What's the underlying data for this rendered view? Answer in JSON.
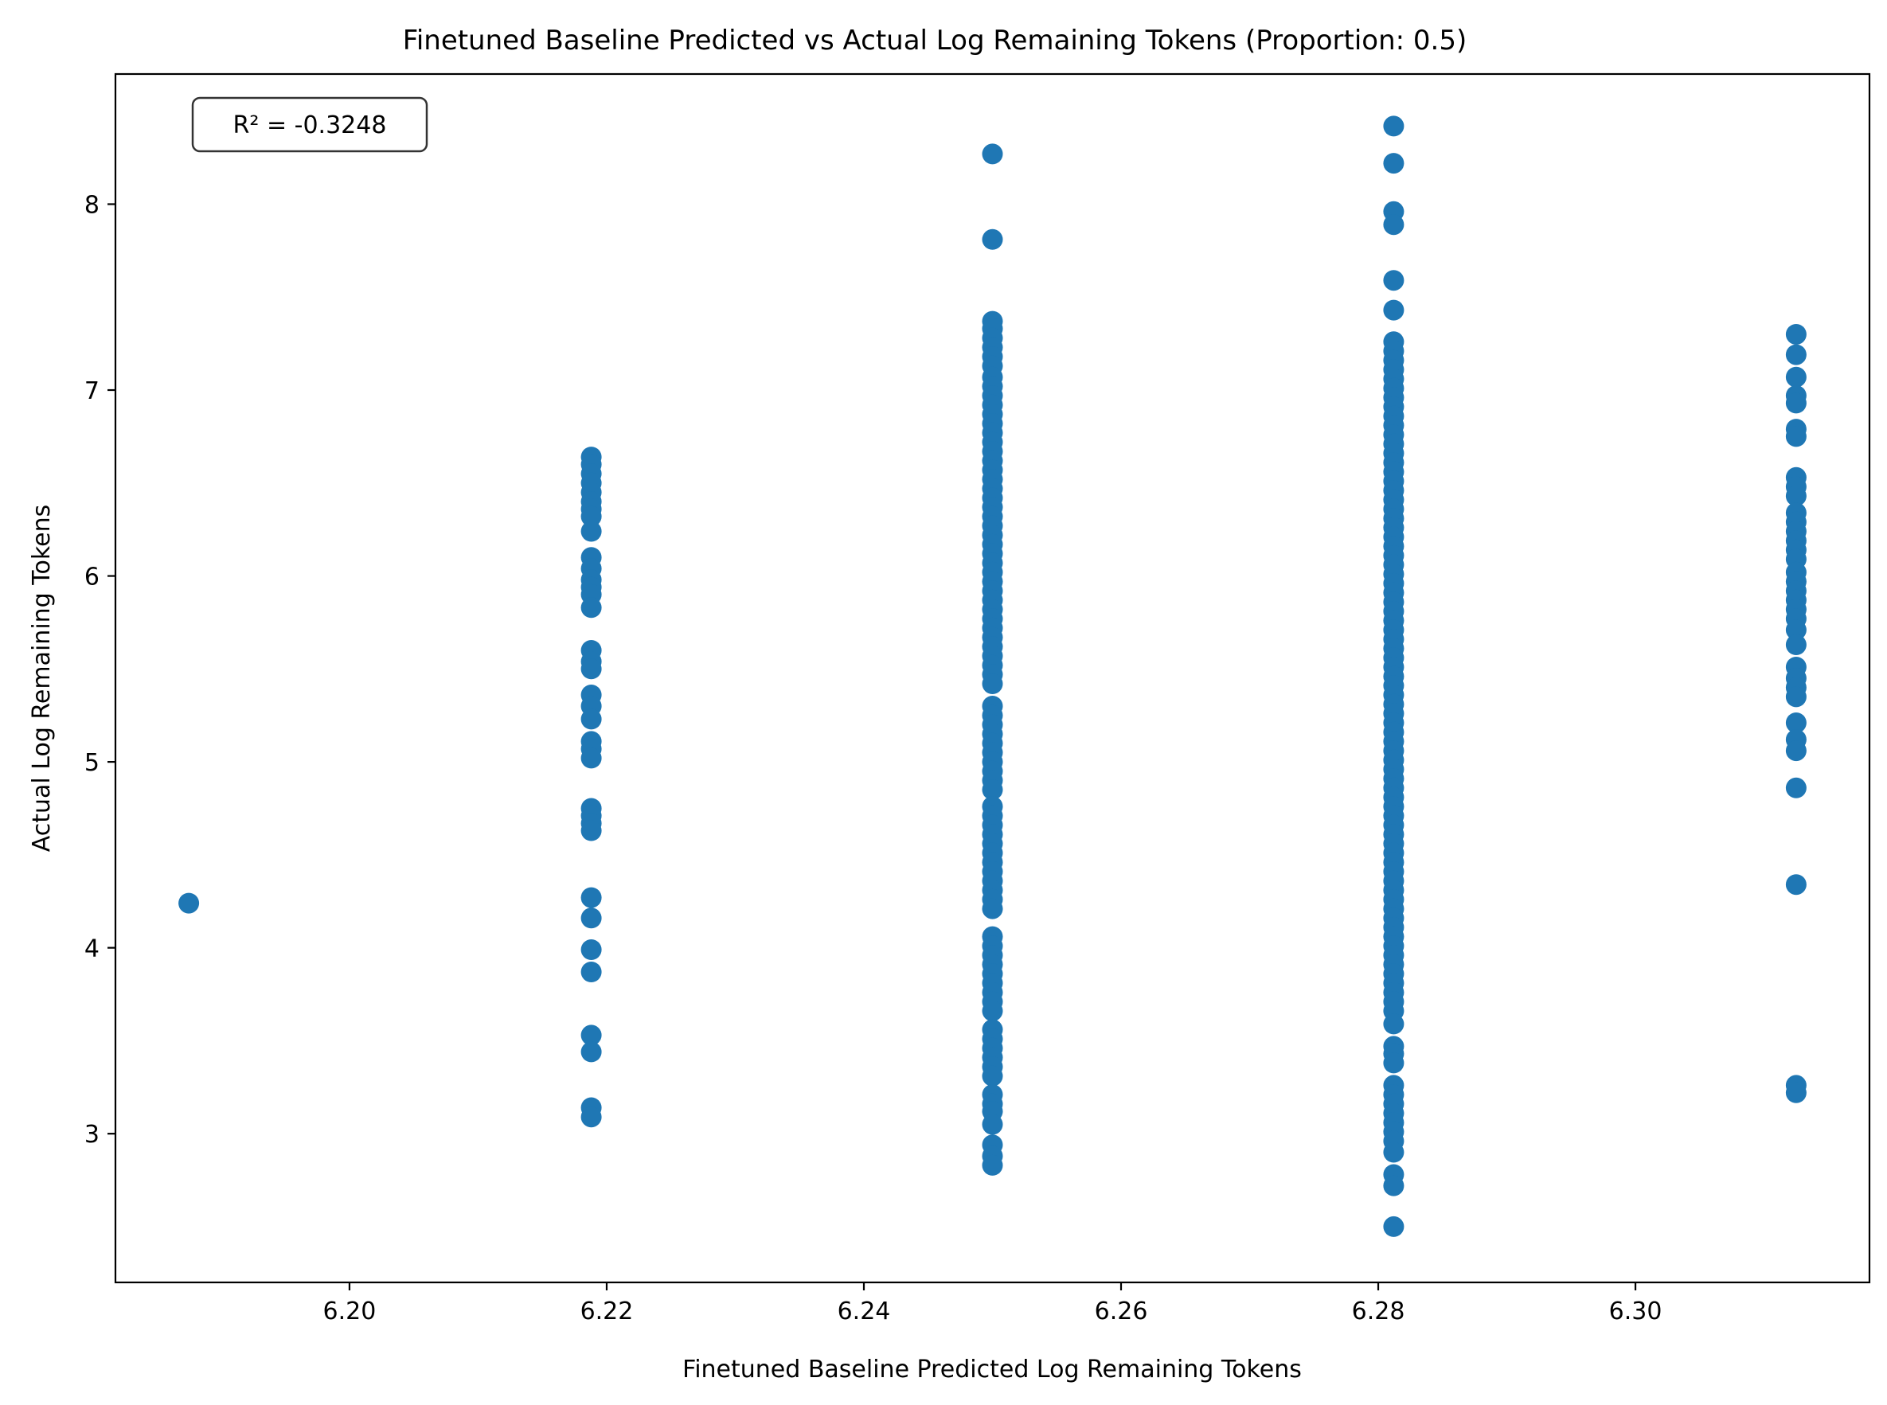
{
  "chart_data": {
    "type": "scatter",
    "title": "Finetuned Baseline Predicted vs Actual Log Remaining Tokens (Proportion: 0.5)",
    "xlabel": "Finetuned Baseline Predicted Log Remaining Tokens",
    "ylabel": "Actual Log Remaining Tokens",
    "xlim": [
      6.1818,
      6.3182
    ],
    "ylim": [
      2.2,
      8.7
    ],
    "xticks": [
      6.2,
      6.22,
      6.24,
      6.26,
      6.28,
      6.3
    ],
    "xtick_labels": [
      "6.20",
      "6.22",
      "6.24",
      "6.26",
      "6.28",
      "6.30"
    ],
    "yticks": [
      3,
      4,
      5,
      6,
      7,
      8
    ],
    "ytick_labels": [
      "3",
      "4",
      "5",
      "6",
      "7",
      "8"
    ],
    "grid": false,
    "annotation": "R² = -0.3248",
    "point_color": "#1f77b4",
    "series": [
      {
        "x": 6.1875,
        "y": [
          4.24
        ]
      },
      {
        "x": 6.2188,
        "y": [
          6.64,
          6.6,
          6.55,
          6.5,
          6.45,
          6.4,
          6.36,
          6.32,
          6.24,
          6.1,
          6.04,
          5.98,
          5.94,
          5.9,
          5.83,
          5.6,
          5.54,
          5.5,
          5.36,
          5.3,
          5.23,
          5.11,
          5.07,
          5.02,
          4.75,
          4.71,
          4.67,
          4.63,
          4.27,
          4.16,
          3.99,
          3.87,
          3.53,
          3.44,
          3.14,
          3.09
        ]
      },
      {
        "x": 6.25,
        "y": [
          8.27,
          7.81,
          7.37,
          7.33,
          7.28,
          7.23,
          7.18,
          7.13,
          7.07,
          7.02,
          6.97,
          6.92,
          6.87,
          6.82,
          6.77,
          6.72,
          6.67,
          6.62,
          6.57,
          6.52,
          6.47,
          6.42,
          6.37,
          6.32,
          6.27,
          6.22,
          6.17,
          6.12,
          6.07,
          6.02,
          5.97,
          5.92,
          5.87,
          5.82,
          5.77,
          5.72,
          5.67,
          5.62,
          5.57,
          5.52,
          5.47,
          5.42,
          5.3,
          5.25,
          5.2,
          5.15,
          5.1,
          5.05,
          5.0,
          4.95,
          4.9,
          4.85,
          4.76,
          4.71,
          4.66,
          4.61,
          4.56,
          4.51,
          4.46,
          4.41,
          4.36,
          4.31,
          4.26,
          4.21,
          4.06,
          4.01,
          3.96,
          3.91,
          3.86,
          3.81,
          3.76,
          3.71,
          3.66,
          3.56,
          3.51,
          3.46,
          3.41,
          3.36,
          3.31,
          3.21,
          3.16,
          3.12,
          3.05,
          2.94,
          2.88,
          2.83
        ]
      },
      {
        "x": 6.2812,
        "y": [
          8.42,
          8.22,
          7.96,
          7.89,
          7.59,
          7.43,
          7.26,
          7.21,
          7.16,
          7.11,
          7.06,
          7.01,
          6.96,
          6.91,
          6.86,
          6.81,
          6.76,
          6.71,
          6.66,
          6.61,
          6.56,
          6.51,
          6.46,
          6.41,
          6.36,
          6.31,
          6.26,
          6.21,
          6.16,
          6.11,
          6.06,
          6.01,
          5.96,
          5.91,
          5.86,
          5.81,
          5.76,
          5.71,
          5.66,
          5.61,
          5.56,
          5.51,
          5.46,
          5.41,
          5.36,
          5.31,
          5.26,
          5.21,
          5.16,
          5.11,
          5.06,
          5.01,
          4.96,
          4.91,
          4.86,
          4.81,
          4.76,
          4.71,
          4.66,
          4.61,
          4.56,
          4.51,
          4.46,
          4.41,
          4.36,
          4.31,
          4.26,
          4.21,
          4.16,
          4.11,
          4.06,
          4.01,
          3.96,
          3.91,
          3.86,
          3.81,
          3.76,
          3.71,
          3.66,
          3.59,
          3.47,
          3.43,
          3.38,
          3.26,
          3.21,
          3.16,
          3.11,
          3.06,
          3.01,
          2.96,
          2.9,
          2.78,
          2.72,
          2.5
        ]
      },
      {
        "x": 6.3125,
        "y": [
          7.3,
          7.19,
          7.07,
          6.97,
          6.93,
          6.79,
          6.75,
          6.53,
          6.48,
          6.43,
          6.34,
          6.29,
          6.24,
          6.19,
          6.14,
          6.09,
          6.02,
          5.97,
          5.92,
          5.87,
          5.82,
          5.77,
          5.71,
          5.63,
          5.51,
          5.45,
          5.4,
          5.35,
          5.21,
          5.12,
          5.06,
          4.86,
          4.34,
          3.26,
          3.22
        ]
      }
    ]
  }
}
